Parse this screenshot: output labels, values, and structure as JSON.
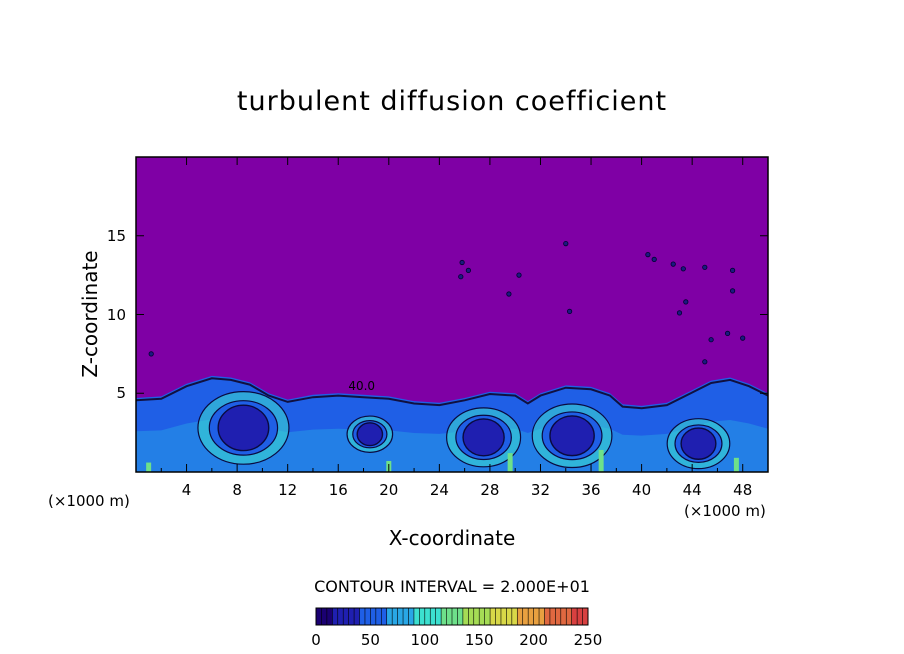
{
  "chart_data": {
    "type": "heatmap",
    "title": "turbulent diffusion coefficient",
    "xlabel": "X-coordinate",
    "ylabel": "Z-coordinate",
    "x_unit": "(×1000 m)",
    "y_unit": "(×1000 m)",
    "xlim": [
      0,
      50
    ],
    "ylim": [
      0,
      20
    ],
    "x_ticks": [
      4,
      8,
      12,
      16,
      20,
      24,
      28,
      32,
      36,
      40,
      44,
      48
    ],
    "y_ticks": [
      5,
      10,
      15
    ],
    "contour_interval_text": "CONTOUR INTERVAL = 2.000E+01",
    "contour_line_label": "40.0",
    "colorbar": {
      "min": 0,
      "max": 250,
      "ticks": [
        0,
        50,
        100,
        150,
        200,
        250
      ],
      "colors": [
        "#1a0072",
        "#1f1fb0",
        "#1f5fe6",
        "#29a7e6",
        "#3ce0d0",
        "#6ee08a",
        "#a5dc55",
        "#d8d848",
        "#e8a040",
        "#e06840",
        "#d84040"
      ]
    },
    "background_value_color": "#7f00a5",
    "boundary_layer_top": [
      [
        0,
        4.7
      ],
      [
        2,
        4.8
      ],
      [
        4,
        5.6
      ],
      [
        6,
        6.1
      ],
      [
        7.5,
        6.0
      ],
      [
        9,
        5.7
      ],
      [
        10.5,
        5.0
      ],
      [
        12,
        4.6
      ],
      [
        14,
        4.9
      ],
      [
        16,
        5.0
      ],
      [
        18,
        4.9
      ],
      [
        20,
        4.8
      ],
      [
        22,
        4.5
      ],
      [
        24,
        4.4
      ],
      [
        26,
        4.7
      ],
      [
        28,
        5.1
      ],
      [
        30,
        5.0
      ],
      [
        31,
        4.5
      ],
      [
        32,
        5.0
      ],
      [
        34,
        5.5
      ],
      [
        36,
        5.4
      ],
      [
        37.5,
        5.0
      ],
      [
        38.5,
        4.3
      ],
      [
        40,
        4.2
      ],
      [
        42,
        4.4
      ],
      [
        44,
        5.2
      ],
      [
        45.5,
        5.8
      ],
      [
        47,
        6.0
      ],
      [
        48.5,
        5.6
      ],
      [
        50,
        5.0
      ]
    ],
    "core_minima": [
      {
        "x": 8.5,
        "z": 2.8,
        "r": 1.6
      },
      {
        "x": 27.5,
        "z": 2.2,
        "r": 1.3
      },
      {
        "x": 34.5,
        "z": 2.3,
        "r": 1.4
      },
      {
        "x": 44.5,
        "z": 1.8,
        "r": 1.1
      },
      {
        "x": 18.5,
        "z": 2.4,
        "r": 0.8
      }
    ],
    "upper_spots": [
      [
        25.8,
        13.3
      ],
      [
        26.3,
        12.8
      ],
      [
        25.7,
        12.4
      ],
      [
        29.5,
        11.3
      ],
      [
        34.0,
        14.5
      ],
      [
        34.3,
        10.2
      ],
      [
        40.5,
        13.8
      ],
      [
        41.0,
        13.5
      ],
      [
        42.5,
        13.2
      ],
      [
        43.3,
        12.9
      ],
      [
        45.0,
        13.0
      ],
      [
        47.2,
        12.8
      ],
      [
        43.5,
        10.8
      ],
      [
        43.0,
        10.1
      ],
      [
        47.2,
        11.5
      ],
      [
        45.5,
        8.4
      ],
      [
        45.0,
        7.0
      ],
      [
        48.0,
        8.5
      ],
      [
        46.8,
        8.8
      ],
      [
        1.2,
        7.5
      ],
      [
        30.3,
        12.5
      ]
    ]
  }
}
